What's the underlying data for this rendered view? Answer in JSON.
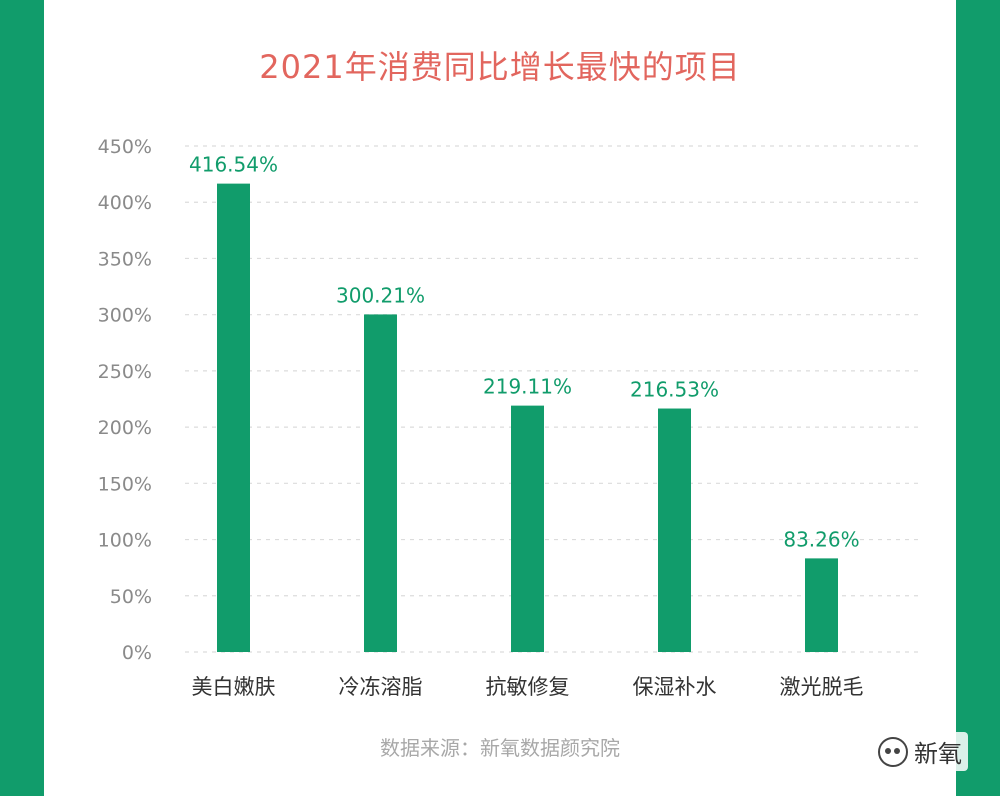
{
  "chart_data": {
    "type": "bar",
    "title": "2021年消费同比增长最快的项目",
    "categories": [
      "美白嫩肤",
      "冷冻溶脂",
      "抗敏修复",
      "保湿补水",
      "激光脱毛"
    ],
    "values": [
      416.54,
      300.21,
      219.11,
      216.53,
      83.26
    ],
    "data_labels": [
      "416.54%",
      "300.21%",
      "219.11%",
      "216.53%",
      "83.26%"
    ],
    "y_ticks": [
      0,
      50,
      100,
      150,
      200,
      250,
      300,
      350,
      400,
      450
    ],
    "y_tick_labels": [
      "0%",
      "50%",
      "100%",
      "150%",
      "200%",
      "250%",
      "300%",
      "350%",
      "400%",
      "450%"
    ],
    "ylim": [
      0,
      450
    ],
    "xlabel": "",
    "ylabel": "",
    "grid": true,
    "bar_color": "#119c6b",
    "label_color": "#119c6b",
    "title_color": "#e2665e"
  },
  "source": "数据来源：新氧数据颜究院",
  "watermark": {
    "icon": "wechat-icon",
    "text": "新氧"
  }
}
